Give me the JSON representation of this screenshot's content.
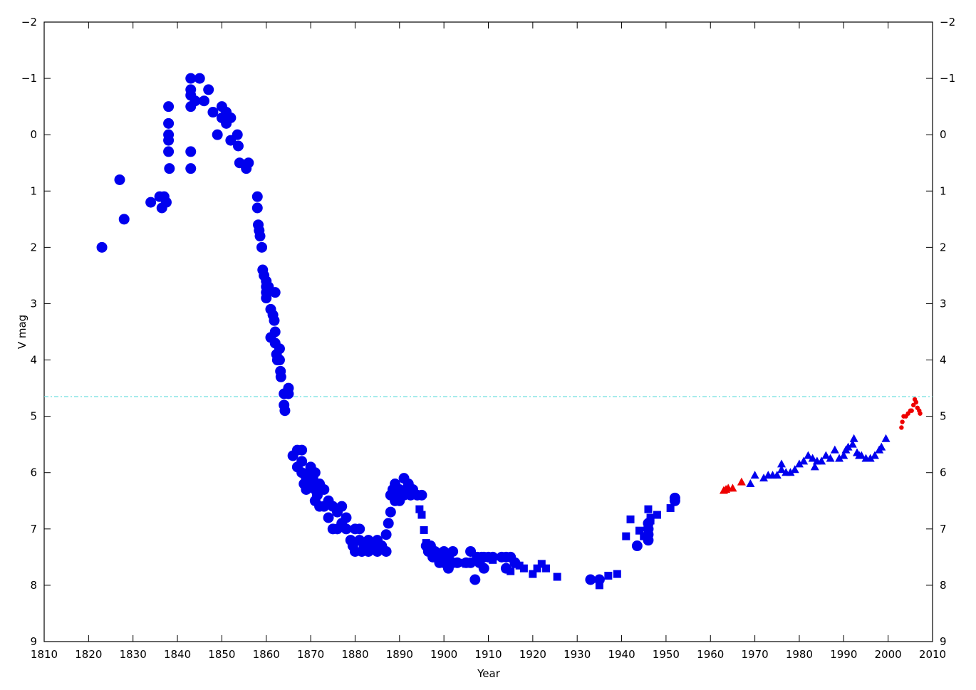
{
  "chart_data": {
    "type": "scatter",
    "x_label": "Year",
    "y_label": "V mag",
    "xlim": [
      1810,
      2010
    ],
    "xticks": [
      1810,
      1820,
      1830,
      1840,
      1850,
      1860,
      1870,
      1880,
      1890,
      1900,
      1910,
      1920,
      1930,
      1940,
      1950,
      1960,
      1970,
      1980,
      1990,
      2000,
      2010
    ],
    "ylim": [
      9,
      -2
    ],
    "yticks": [
      {
        "value": -2,
        "label": "−2"
      },
      {
        "value": -1,
        "label": "−1"
      },
      0,
      1,
      2,
      3,
      4,
      5,
      6,
      7,
      8,
      9
    ],
    "y2lim": [
      9,
      -2
    ],
    "y2ticks": [
      {
        "value": -2,
        "label": "−2"
      },
      {
        "value": -1,
        "label": "−1"
      },
      0,
      1,
      2,
      3,
      4,
      5,
      6,
      7,
      8,
      9
    ],
    "reference_line": {
      "value": 4.65,
      "color": "#66dddd"
    },
    "series": [
      {
        "marker": "circle",
        "color": "#0000ee",
        "x": [
          1823,
          1827,
          1828,
          1834,
          1836,
          1836.5,
          1837,
          1837.5,
          1838,
          1838,
          1838,
          1838,
          1838,
          1838.2,
          1843,
          1843,
          1843,
          1843,
          1843,
          1843,
          1844,
          1845,
          1846,
          1847,
          1848,
          1849,
          1850,
          1850,
          1851,
          1851,
          1852,
          1852,
          1853.5,
          1853.7,
          1854,
          1855.5,
          1856,
          1858,
          1858,
          1858.2,
          1858.4,
          1858.6,
          1859,
          1859.2,
          1859.5,
          1860,
          1860,
          1860,
          1860,
          1860.5,
          1861,
          1861,
          1861.5,
          1861.8,
          1862,
          1862,
          1862,
          1862.3,
          1862.5,
          1863,
          1863,
          1863.2,
          1863.3,
          1864,
          1864,
          1864.2,
          1865,
          1865,
          1866,
          1867,
          1867,
          1868,
          1868,
          1868,
          1868.5,
          1869,
          1869,
          1869.5,
          1870,
          1870,
          1870.5,
          1871,
          1871,
          1871,
          1871.5,
          1872,
          1872,
          1873,
          1873,
          1874,
          1874,
          1875,
          1875,
          1876,
          1876,
          1877,
          1877,
          1878,
          1878,
          1879,
          1879.5,
          1880,
          1880,
          1881,
          1881,
          1881.5,
          1882,
          1883,
          1883,
          1884,
          1885,
          1885,
          1886,
          1887,
          1887,
          1887.5,
          1888,
          1888,
          1888.5,
          1889,
          1889,
          1889.5,
          1890,
          1890,
          1891,
          1891,
          1891.5,
          1892,
          1892.5,
          1893,
          1894,
          1895,
          1896,
          1896.5,
          1897,
          1897.5,
          1898,
          1899,
          1899,
          1900,
          1900,
          1901,
          1901,
          1902,
          1902,
          1903,
          1905,
          1906,
          1906,
          1907,
          1907.5,
          1908,
          1908.5,
          1909,
          1909,
          1910,
          1911,
          1913,
          1914,
          1914,
          1915,
          1916,
          1933,
          1935,
          1943.5,
          1946,
          1946,
          1946,
          1946,
          1952,
          1952
        ],
        "values": [
          2.0,
          0.8,
          1.5,
          1.2,
          1.1,
          1.3,
          1.1,
          1.2,
          -0.5,
          -0.2,
          0,
          0.3,
          0.1,
          0.6,
          -1,
          -0.8,
          -0.7,
          -0.5,
          0.3,
          0.6,
          -0.6,
          -1,
          -0.6,
          -0.8,
          -0.4,
          0,
          -0.5,
          -0.3,
          -0.2,
          -0.4,
          -0.3,
          0.1,
          0,
          0.2,
          0.5,
          0.6,
          0.5,
          1.1,
          1.3,
          1.6,
          1.7,
          1.8,
          2.0,
          2.4,
          2.5,
          2.6,
          2.7,
          2.8,
          2.9,
          2.7,
          3.1,
          3.6,
          3.2,
          3.3,
          2.8,
          3.5,
          3.7,
          3.9,
          4.0,
          3.8,
          4.0,
          4.2,
          4.3,
          4.6,
          4.8,
          4.9,
          4.5,
          4.6,
          5.7,
          5.6,
          5.9,
          5.6,
          5.8,
          6.0,
          6.2,
          6.1,
          6.3,
          6.0,
          5.9,
          6.2,
          6.1,
          6.0,
          6.3,
          6.5,
          6.4,
          6.2,
          6.6,
          6.3,
          6.6,
          6.5,
          6.8,
          6.6,
          7.0,
          6.7,
          7.0,
          6.6,
          6.9,
          6.8,
          7.0,
          7.2,
          7.3,
          7.0,
          7.4,
          7.0,
          7.2,
          7.4,
          7.3,
          7.2,
          7.4,
          7.3,
          7.2,
          7.4,
          7.3,
          7.1,
          7.4,
          6.9,
          6.7,
          6.4,
          6.3,
          6.5,
          6.2,
          6.4,
          6.3,
          6.5,
          6.1,
          6.4,
          6.3,
          6.2,
          6.4,
          6.3,
          6.4,
          6.4,
          7.3,
          7.4,
          7.3,
          7.5,
          7.4,
          7.5,
          7.6,
          7.4,
          7.6,
          7.5,
          7.7,
          7.4,
          7.6,
          7.6,
          7.6,
          7.4,
          7.6,
          7.9,
          7.5,
          7.6,
          7.5,
          7.7,
          7.5,
          7.5,
          7.5,
          7.5,
          7.5,
          7.7,
          7.5,
          7.6,
          7.9,
          7.9,
          7.3,
          7.2,
          7.1,
          7.0,
          6.9,
          6.5,
          6.45
        ]
      },
      {
        "marker": "square",
        "color": "#0000ee",
        "x": [
          1894.5,
          1895,
          1895.5,
          1896,
          1897,
          1904,
          1905,
          1911,
          1914,
          1915,
          1917,
          1918,
          1920,
          1921,
          1922,
          1923,
          1925.5,
          1935,
          1937,
          1939,
          1941,
          1942,
          1944,
          1945,
          1946,
          1946.5,
          1946.5,
          1948,
          1951
        ],
        "values": [
          6.65,
          6.75,
          7.02,
          7.25,
          7.35,
          7.6,
          7.62,
          7.55,
          7.7,
          7.75,
          7.65,
          7.7,
          7.8,
          7.7,
          7.62,
          7.7,
          7.85,
          8.0,
          7.83,
          7.8,
          7.13,
          6.83,
          7.03,
          7.13,
          6.65,
          6.85,
          6.8,
          6.75,
          6.63
        ]
      },
      {
        "marker": "triangle",
        "color": "#0000ee",
        "x": [
          1969,
          1970,
          1972,
          1973,
          1974,
          1975,
          1976,
          1976,
          1977,
          1978,
          1979,
          1980,
          1981,
          1982,
          1983,
          1983.5,
          1984,
          1985,
          1986,
          1987,
          1988,
          1989,
          1990,
          1990.5,
          1991,
          1992,
          1992.3,
          1993,
          1993.5,
          1994,
          1995,
          1996,
          1997,
          1998,
          1998.5,
          1999.5
        ],
        "values": [
          6.2,
          6.05,
          6.1,
          6.05,
          6.05,
          6.05,
          5.95,
          5.85,
          6.0,
          6.0,
          5.95,
          5.85,
          5.8,
          5.7,
          5.75,
          5.9,
          5.8,
          5.8,
          5.7,
          5.75,
          5.6,
          5.75,
          5.7,
          5.6,
          5.55,
          5.5,
          5.4,
          5.65,
          5.7,
          5.7,
          5.75,
          5.75,
          5.7,
          5.6,
          5.55,
          5.4
        ]
      },
      {
        "marker": "triangle",
        "color": "#ee0000",
        "x": [
          1963,
          1963.5,
          1964,
          1965,
          1967
        ],
        "values": [
          6.32,
          6.3,
          6.28,
          6.28,
          6.17
        ]
      },
      {
        "marker": "dot",
        "color": "#ee0000",
        "x": [
          2003,
          2003.2,
          2003.5,
          2004,
          2004.5,
          2005,
          2005.3,
          2005.7,
          2006,
          2006.3,
          2006.6,
          2007,
          2007.2
        ],
        "values": [
          5.2,
          5.1,
          5.0,
          5.0,
          4.95,
          4.9,
          4.9,
          4.8,
          4.7,
          4.75,
          4.85,
          4.9,
          4.95
        ]
      }
    ]
  }
}
